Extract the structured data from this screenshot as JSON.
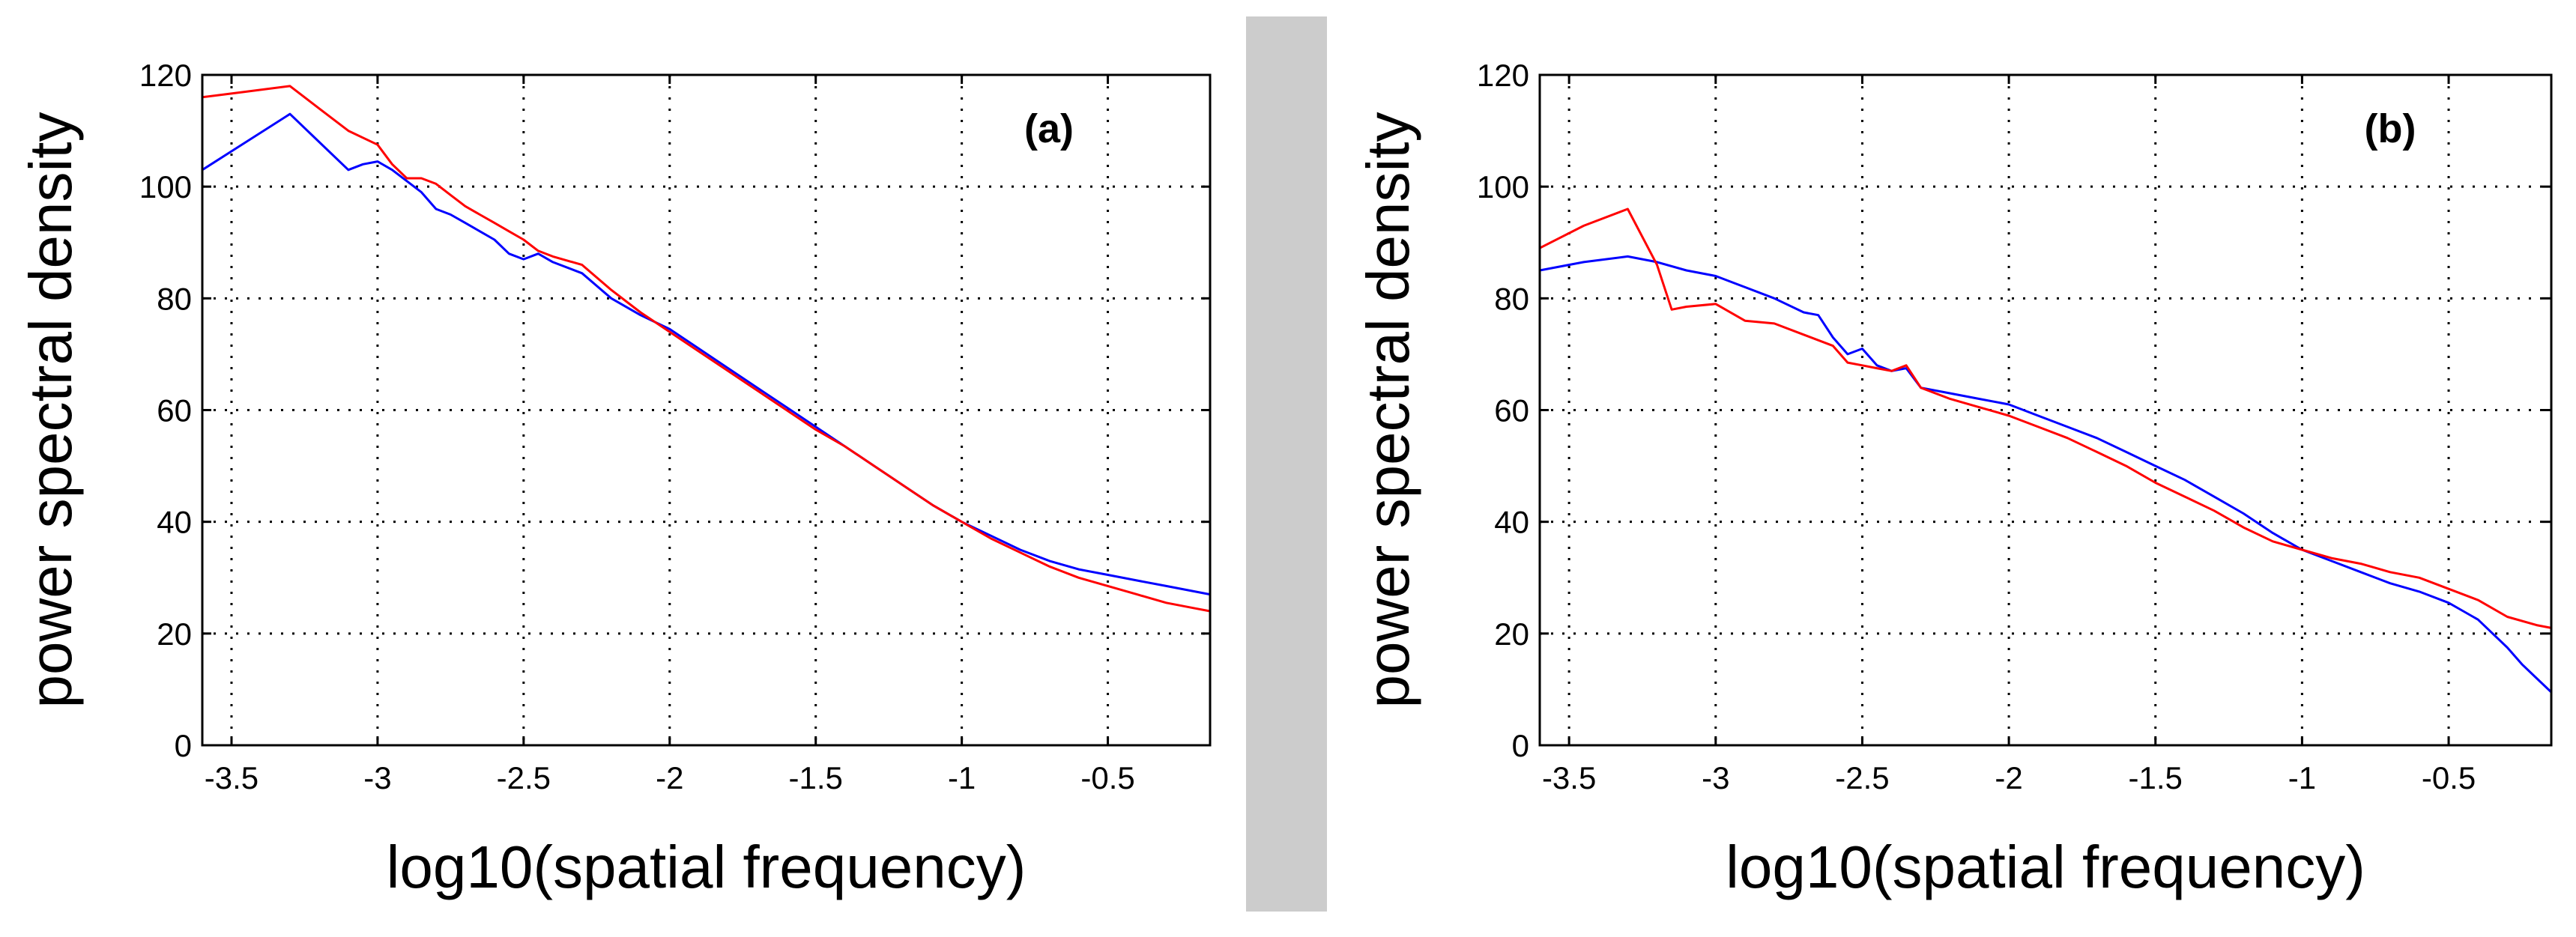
{
  "divider_color": "#cccccc",
  "chart_data": [
    {
      "type": "line",
      "panel_label": "(a)",
      "xlabel": "log10(spatial frequency)",
      "ylabel": "power spectral density",
      "xlim": [
        -3.6,
        -0.15
      ],
      "ylim": [
        0,
        120
      ],
      "xticks": [
        -3.5,
        -3,
        -2.5,
        -2,
        -1.5,
        -1,
        -0.5
      ],
      "xtick_labels": [
        "-3.5",
        "-3",
        "-2.5",
        "-2",
        "-1.5",
        "-1",
        "-0.5"
      ],
      "yticks": [
        0,
        20,
        40,
        60,
        80,
        100,
        120
      ],
      "ytick_labels": [
        "0",
        "20",
        "40",
        "60",
        "80",
        "100",
        "120"
      ],
      "grid": true,
      "series": [
        {
          "name": "blue",
          "color": "#0000ff",
          "x": [
            -3.6,
            -3.45,
            -3.3,
            -3.2,
            -3.1,
            -3.05,
            -3.0,
            -2.95,
            -2.9,
            -2.85,
            -2.8,
            -2.75,
            -2.7,
            -2.65,
            -2.6,
            -2.55,
            -2.5,
            -2.45,
            -2.4,
            -2.3,
            -2.2,
            -2.1,
            -2.0,
            -1.9,
            -1.8,
            -1.7,
            -1.6,
            -1.5,
            -1.4,
            -1.3,
            -1.2,
            -1.1,
            -1.0,
            -0.9,
            -0.8,
            -0.7,
            -0.6,
            -0.5,
            -0.4,
            -0.3,
            -0.2,
            -0.15
          ],
          "y": [
            103,
            108,
            113,
            108,
            103,
            104,
            104.5,
            103,
            101,
            99,
            96,
            95,
            93.5,
            92,
            90.5,
            88,
            87,
            88,
            86.5,
            84.5,
            80,
            77,
            74.5,
            71,
            67.5,
            64,
            60.5,
            57,
            53.5,
            50,
            46.5,
            43,
            40,
            37.5,
            35,
            33,
            31.5,
            30.5,
            29.5,
            28.5,
            27.5,
            27
          ]
        },
        {
          "name": "red",
          "color": "#ff0000",
          "x": [
            -3.6,
            -3.45,
            -3.3,
            -3.2,
            -3.1,
            -3.0,
            -2.95,
            -2.9,
            -2.85,
            -2.8,
            -2.75,
            -2.7,
            -2.65,
            -2.6,
            -2.55,
            -2.5,
            -2.45,
            -2.4,
            -2.3,
            -2.2,
            -2.1,
            -2.0,
            -1.9,
            -1.8,
            -1.7,
            -1.6,
            -1.5,
            -1.4,
            -1.3,
            -1.2,
            -1.1,
            -1.0,
            -0.9,
            -0.8,
            -0.7,
            -0.6,
            -0.5,
            -0.4,
            -0.3,
            -0.2,
            -0.15
          ],
          "y": [
            116,
            117,
            118,
            114,
            110,
            107.5,
            104,
            101.5,
            101.5,
            100.5,
            98.5,
            96.5,
            95,
            93.5,
            92,
            90.5,
            88.5,
            87.5,
            86,
            81.5,
            77.5,
            74,
            70.5,
            67,
            63.5,
            60,
            56.5,
            53.5,
            50,
            46.5,
            43,
            40,
            37,
            34.5,
            32,
            30,
            28.5,
            27,
            25.5,
            24.5,
            24
          ]
        }
      ]
    },
    {
      "type": "line",
      "panel_label": "(b)",
      "xlabel": "log10(spatial frequency)",
      "ylabel": "power spectral density",
      "xlim": [
        -3.6,
        -0.15
      ],
      "ylim": [
        0,
        120
      ],
      "xticks": [
        -3.5,
        -3,
        -2.5,
        -2,
        -1.5,
        -1,
        -0.5
      ],
      "xtick_labels": [
        "-3.5",
        "-3",
        "-2.5",
        "-2",
        "-1.5",
        "-1",
        "-0.5"
      ],
      "yticks": [
        0,
        20,
        40,
        60,
        80,
        100,
        120
      ],
      "ytick_labels": [
        "0",
        "20",
        "40",
        "60",
        "80",
        "100",
        "120"
      ],
      "grid": true,
      "series": [
        {
          "name": "blue",
          "color": "#0000ff",
          "x": [
            -3.6,
            -3.45,
            -3.3,
            -3.2,
            -3.1,
            -3.0,
            -2.9,
            -2.8,
            -2.7,
            -2.65,
            -2.6,
            -2.55,
            -2.5,
            -2.45,
            -2.4,
            -2.35,
            -2.3,
            -2.2,
            -2.1,
            -2.0,
            -1.9,
            -1.8,
            -1.7,
            -1.6,
            -1.5,
            -1.4,
            -1.3,
            -1.2,
            -1.1,
            -1.0,
            -0.9,
            -0.8,
            -0.7,
            -0.6,
            -0.5,
            -0.45,
            -0.4,
            -0.35,
            -0.3,
            -0.25,
            -0.2,
            -0.15
          ],
          "y": [
            85,
            86.5,
            87.5,
            86.5,
            85,
            84,
            82,
            80,
            77.5,
            77,
            73,
            70,
            71,
            68,
            67,
            67.5,
            64,
            63,
            62,
            61,
            59,
            57,
            55,
            52.5,
            50,
            47.5,
            44.5,
            41.5,
            38,
            35,
            33,
            31,
            29,
            27.5,
            25.5,
            24,
            22.5,
            20,
            17.5,
            14.5,
            12,
            9.5
          ]
        },
        {
          "name": "red",
          "color": "#ff0000",
          "x": [
            -3.6,
            -3.45,
            -3.3,
            -3.2,
            -3.15,
            -3.1,
            -3.0,
            -2.9,
            -2.8,
            -2.7,
            -2.6,
            -2.55,
            -2.5,
            -2.45,
            -2.4,
            -2.35,
            -2.3,
            -2.2,
            -2.1,
            -2.0,
            -1.9,
            -1.8,
            -1.7,
            -1.6,
            -1.5,
            -1.4,
            -1.3,
            -1.2,
            -1.1,
            -1.0,
            -0.9,
            -0.8,
            -0.7,
            -0.6,
            -0.5,
            -0.4,
            -0.3,
            -0.2,
            -0.15
          ],
          "y": [
            89,
            93,
            96,
            86,
            78,
            78.5,
            79,
            76,
            75.5,
            73.5,
            71.5,
            68.5,
            68,
            67.5,
            67,
            68,
            64,
            62,
            60.5,
            59,
            57,
            55,
            52.5,
            50,
            47,
            44.5,
            42,
            39,
            36.5,
            35,
            33.5,
            32.5,
            31,
            30,
            28,
            26,
            23,
            21.5,
            21
          ]
        }
      ]
    }
  ]
}
